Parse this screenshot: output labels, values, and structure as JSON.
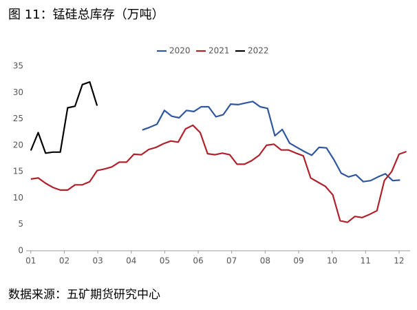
{
  "title": "图 11：锰硅总库存（万吨）",
  "source": "数据来源：五矿期货研究中心",
  "chart_data": {
    "type": "line",
    "ylim": [
      0,
      35
    ],
    "yticks": [
      0,
      5,
      10,
      15,
      20,
      25,
      30,
      35
    ],
    "xlim": [
      0.86,
      12.33
    ],
    "xticks": [
      {
        "value": 1,
        "label": "01"
      },
      {
        "value": 2,
        "label": "02"
      },
      {
        "value": 3,
        "label": "03"
      },
      {
        "value": 4,
        "label": "04"
      },
      {
        "value": 5,
        "label": "05"
      },
      {
        "value": 6,
        "label": "06"
      },
      {
        "value": 7,
        "label": "07"
      },
      {
        "value": 8,
        "label": "08"
      },
      {
        "value": 9,
        "label": "09"
      },
      {
        "value": 10,
        "label": "10"
      },
      {
        "value": 11,
        "label": "11"
      },
      {
        "value": 12,
        "label": "12"
      }
    ],
    "legend": "top",
    "series": [
      {
        "name": "2020",
        "color": "#2e569e",
        "x": [
          4.33,
          4.55,
          4.77,
          4.99,
          5.21,
          5.43,
          5.65,
          5.87,
          6.09,
          6.31,
          6.53,
          6.75,
          6.97,
          7.19,
          7.41,
          7.63,
          7.85,
          8.07,
          8.29,
          8.51,
          8.73,
          8.95,
          9.17,
          9.39,
          9.61,
          9.83,
          10.05,
          10.27,
          10.49,
          10.71,
          10.93,
          11.15,
          11.37,
          11.59,
          11.81,
          12.03
        ],
        "values": [
          22.9,
          23.4,
          24,
          26.6,
          25.5,
          25.2,
          26.6,
          26.4,
          27.3,
          27.3,
          25.4,
          25.8,
          27.8,
          27.7,
          28,
          28.3,
          27.3,
          27,
          21.8,
          23,
          20.4,
          19.6,
          18.8,
          18.1,
          19.6,
          19.5,
          17.3,
          14.7,
          14,
          14.4,
          13.1,
          13.3,
          14,
          14.6,
          13.3,
          13.4
        ]
      },
      {
        "name": "2021",
        "color": "#b0202a",
        "x": [
          1,
          1.22,
          1.44,
          1.66,
          1.88,
          2.1,
          2.32,
          2.54,
          2.76,
          2.98,
          3.2,
          3.42,
          3.64,
          3.86,
          4.08,
          4.3,
          4.52,
          4.74,
          4.96,
          5.18,
          5.4,
          5.62,
          5.84,
          6.06,
          6.28,
          6.5,
          6.72,
          6.94,
          7.16,
          7.38,
          7.6,
          7.82,
          8.04,
          8.26,
          8.48,
          8.7,
          8.92,
          9.14,
          9.36,
          9.58,
          9.8,
          10.02,
          10.24,
          10.46,
          10.68,
          10.9,
          11.12,
          11.34,
          11.56,
          11.78,
          12,
          12.22
        ],
        "values": [
          13.6,
          13.8,
          12.8,
          12,
          11.5,
          11.5,
          12.5,
          12.5,
          13.1,
          15.2,
          15.5,
          15.9,
          16.8,
          16.8,
          18.3,
          18.2,
          19.2,
          19.6,
          20.3,
          20.8,
          20.6,
          23.1,
          23.8,
          22.4,
          18.4,
          18.2,
          18.5,
          18.2,
          16.4,
          16.4,
          17.1,
          18.1,
          20,
          20.2,
          19.1,
          19.1,
          18.5,
          18,
          13.8,
          13,
          12.2,
          10.6,
          5.7,
          5.4,
          6.5,
          6.3,
          6.9,
          7.6,
          13.3,
          15,
          18.3,
          18.8
        ]
      },
      {
        "name": "2022",
        "color": "#000000",
        "x": [
          1,
          1.22,
          1.44,
          1.66,
          1.88,
          2.1,
          2.32,
          2.54,
          2.76,
          2.98
        ],
        "values": [
          19,
          22.4,
          18.5,
          18.7,
          18.7,
          27.1,
          27.4,
          31.5,
          32,
          27.5
        ]
      }
    ]
  }
}
